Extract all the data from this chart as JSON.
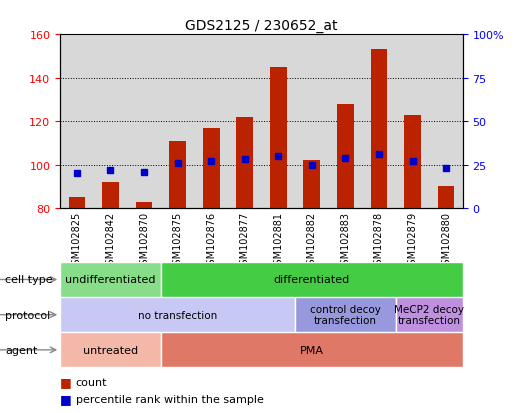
{
  "title": "GDS2125 / 230652_at",
  "samples": [
    "GSM102825",
    "GSM102842",
    "GSM102870",
    "GSM102875",
    "GSM102876",
    "GSM102877",
    "GSM102881",
    "GSM102882",
    "GSM102883",
    "GSM102878",
    "GSM102879",
    "GSM102880"
  ],
  "counts": [
    85,
    92,
    83,
    111,
    117,
    122,
    145,
    102,
    128,
    153,
    123,
    90
  ],
  "percentile_ranks": [
    20,
    22,
    21,
    26,
    27,
    28,
    30,
    25,
    29,
    31,
    27,
    23
  ],
  "ylim_left": [
    80,
    160
  ],
  "ylim_right": [
    0,
    100
  ],
  "yticks_left": [
    80,
    100,
    120,
    140,
    160
  ],
  "yticks_right": [
    0,
    25,
    50,
    75,
    100
  ],
  "bar_color": "#bb2200",
  "dot_color": "#0000cc",
  "bg_color": "#d8d8d8",
  "cell_types": [
    {
      "label": "undifferentiated",
      "start": 0,
      "end": 3,
      "color": "#88dd88"
    },
    {
      "label": "differentiated",
      "start": 3,
      "end": 12,
      "color": "#44cc44"
    }
  ],
  "protocols": [
    {
      "label": "no transfection",
      "start": 0,
      "end": 7,
      "color": "#c8c8f4"
    },
    {
      "label": "control decoy\ntransfection",
      "start": 7,
      "end": 10,
      "color": "#9898dc"
    },
    {
      "label": "MeCP2 decoy\ntransfection",
      "start": 10,
      "end": 12,
      "color": "#c090e0"
    }
  ],
  "agents": [
    {
      "label": "untreated",
      "start": 0,
      "end": 3,
      "color": "#f4b8a8"
    },
    {
      "label": "PMA",
      "start": 3,
      "end": 12,
      "color": "#e07868"
    }
  ],
  "legend_labels": [
    "count",
    "percentile rank within the sample"
  ]
}
